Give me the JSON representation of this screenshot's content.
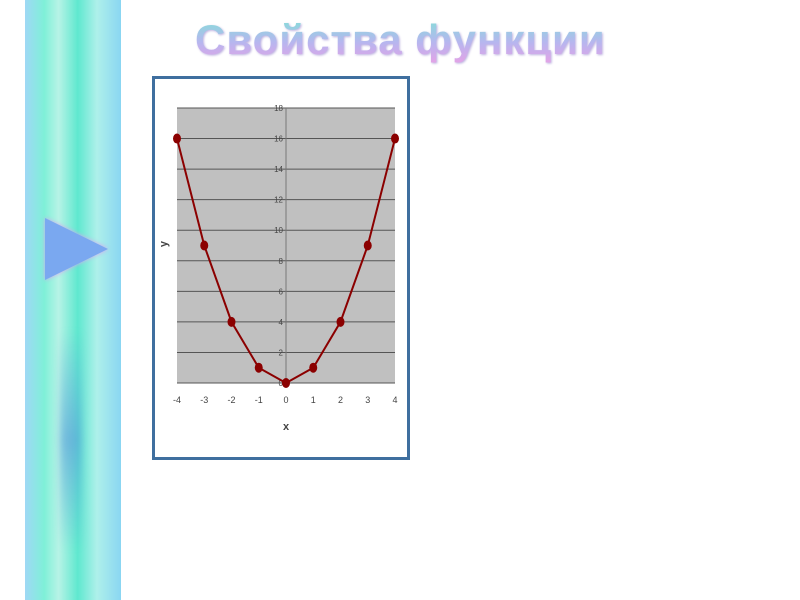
{
  "slide": {
    "title": "Свойства функции"
  },
  "colors": {
    "series": "#8b0000",
    "plot_bg": "#c0c0c0",
    "frame": "#3f6f9f"
  },
  "chart_data": {
    "type": "line",
    "title": "",
    "xlabel": "x",
    "ylabel": "y",
    "x": [
      -4,
      -3,
      -2,
      -1,
      0,
      1,
      2,
      3,
      4
    ],
    "series": [
      {
        "values": [
          16,
          9,
          4,
          1,
          0,
          1,
          4,
          9,
          16
        ]
      }
    ],
    "xlim": [
      -4,
      4
    ],
    "ylim": [
      0,
      18
    ],
    "xticks": [
      "-4",
      "-3",
      "-2",
      "-1",
      "0",
      "1",
      "2",
      "3",
      "4"
    ],
    "yticks": [
      "0",
      "2",
      "4",
      "6",
      "8",
      "10",
      "12",
      "14",
      "16",
      "18"
    ],
    "grid": "horizontal",
    "markers": "circle"
  }
}
